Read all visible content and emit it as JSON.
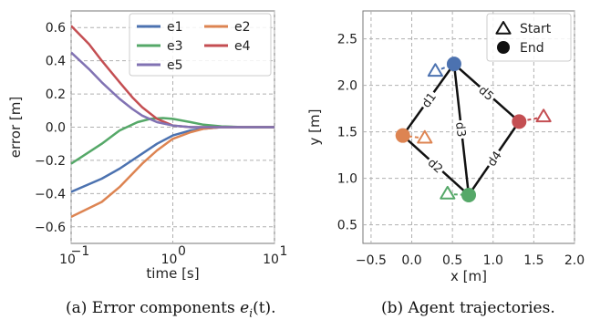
{
  "chart_data": [
    {
      "type": "line",
      "xscale": "log",
      "xlim": [
        0.1,
        10
      ],
      "ylim": [
        -0.7,
        0.7
      ],
      "xlabel": "time [s]",
      "ylabel": "error [m]",
      "xticks": [
        0.1,
        1,
        10
      ],
      "xtick_labels": [
        "10",
        "10",
        "10"
      ],
      "xtick_exponents": [
        "−1",
        "0",
        "1"
      ],
      "yticks": [
        0.6,
        0.4,
        0.2,
        0.0,
        -0.2,
        -0.4,
        -0.6
      ],
      "ytick_labels": [
        "0.6",
        "0.4",
        "0.2",
        "0.0",
        "−0.2",
        "−0.4",
        "−0.6"
      ],
      "grid": true,
      "legend_placement": "top-right",
      "legend_columns": 2,
      "series": [
        {
          "name": "e1",
          "color": "#4c72b0",
          "x": [
            0.1,
            0.2,
            0.3,
            0.5,
            0.7,
            1.0,
            1.5,
            2,
            3,
            5,
            10
          ],
          "y": [
            -0.39,
            -0.31,
            -0.25,
            -0.16,
            -0.1,
            -0.05,
            -0.02,
            -0.01,
            0.0,
            0.0,
            0.0
          ]
        },
        {
          "name": "e2",
          "color": "#dd8452",
          "x": [
            0.1,
            0.2,
            0.3,
            0.5,
            0.7,
            1.0,
            1.5,
            2,
            3,
            5,
            10
          ],
          "y": [
            -0.54,
            -0.45,
            -0.36,
            -0.22,
            -0.14,
            -0.07,
            -0.03,
            -0.01,
            0.0,
            0.0,
            0.0
          ]
        },
        {
          "name": "e3",
          "color": "#55a868",
          "x": [
            0.1,
            0.2,
            0.3,
            0.45,
            0.6,
            0.8,
            1.0,
            1.5,
            2,
            3,
            5,
            10
          ],
          "y": [
            -0.22,
            -0.1,
            -0.02,
            0.03,
            0.05,
            0.055,
            0.05,
            0.03,
            0.015,
            0.005,
            0.0,
            0.0
          ]
        },
        {
          "name": "e4",
          "color": "#c44e52",
          "x": [
            0.1,
            0.15,
            0.2,
            0.3,
            0.4,
            0.5,
            0.7,
            1.0,
            1.5,
            2,
            3,
            10
          ],
          "y": [
            0.61,
            0.5,
            0.4,
            0.27,
            0.18,
            0.12,
            0.05,
            0.01,
            0.0,
            0.0,
            0.0,
            0.0
          ]
        },
        {
          "name": "e5",
          "color": "#8172b3",
          "x": [
            0.1,
            0.15,
            0.2,
            0.3,
            0.4,
            0.5,
            0.7,
            1.0,
            1.5,
            2,
            3,
            10
          ],
          "y": [
            0.45,
            0.35,
            0.27,
            0.17,
            0.11,
            0.07,
            0.03,
            0.01,
            0.0,
            0.0,
            0.0,
            0.0
          ]
        }
      ]
    },
    {
      "type": "scatter",
      "xlim": [
        -0.6,
        2.0
      ],
      "ylim": [
        0.3,
        2.8
      ],
      "xlabel": "x [m]",
      "ylabel": "y [m]",
      "xticks": [
        -0.5,
        0.0,
        0.5,
        1.0,
        1.5,
        2.0
      ],
      "xtick_labels": [
        "−0.5",
        "0.0",
        "0.5",
        "1.0",
        "1.5",
        "2.0"
      ],
      "yticks": [
        0.5,
        1.0,
        1.5,
        2.0,
        2.5
      ],
      "ytick_labels": [
        "0.5",
        "1.0",
        "1.5",
        "2.0",
        "2.5"
      ],
      "grid": true,
      "legend_placement": "top-right",
      "legend": [
        {
          "label": "Start",
          "marker": "triangle"
        },
        {
          "label": "End",
          "marker": "circle"
        }
      ],
      "agents": [
        {
          "color": "#4c72b0",
          "start": [
            0.29,
            2.15
          ],
          "end": [
            0.52,
            2.23
          ]
        },
        {
          "color": "#dd8452",
          "start": [
            0.16,
            1.43
          ],
          "end": [
            -0.11,
            1.46
          ]
        },
        {
          "color": "#55a868",
          "start": [
            0.44,
            0.83
          ],
          "end": [
            0.7,
            0.82
          ]
        },
        {
          "color": "#c44e52",
          "start": [
            1.62,
            1.66
          ],
          "end": [
            1.32,
            1.61
          ]
        }
      ],
      "edges": [
        {
          "label": "d1",
          "from": 0,
          "to": 1
        },
        {
          "label": "d2",
          "from": 1,
          "to": 2
        },
        {
          "label": "d3",
          "from": 0,
          "to": 2
        },
        {
          "label": "d4",
          "from": 2,
          "to": 3
        },
        {
          "label": "d5",
          "from": 0,
          "to": 3
        }
      ]
    }
  ],
  "captions": {
    "a_prefix": "(a) Error components ",
    "a_math": "e",
    "a_sub": "i",
    "a_suffix": "(t).",
    "b": "(b) Agent trajectories."
  }
}
